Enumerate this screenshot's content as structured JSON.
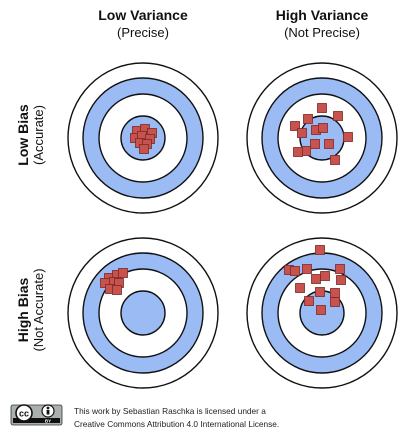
{
  "columns": [
    {
      "title": "Low Variance",
      "subtitle": "(Precise)"
    },
    {
      "title": "High Variance",
      "subtitle": "(Not Precise)"
    }
  ],
  "rows": [
    {
      "title": "Low Bias",
      "subtitle": "(Accurate)"
    },
    {
      "title": "High Bias",
      "subtitle": "(Not Accurate)"
    }
  ],
  "colors": {
    "ring_blue": "#9bbbf4",
    "ring_white": "#ffffff",
    "ring_stroke": "#111111",
    "marker_fill": "#c8524d",
    "marker_stroke": "#7a2a27"
  },
  "badge": {
    "cc": "cc",
    "by": "BY"
  },
  "license": {
    "line1": "This work by Sebastian Raschka is licensed under a",
    "line2": "Creative Commons Attribution 4.0 International License."
  }
}
